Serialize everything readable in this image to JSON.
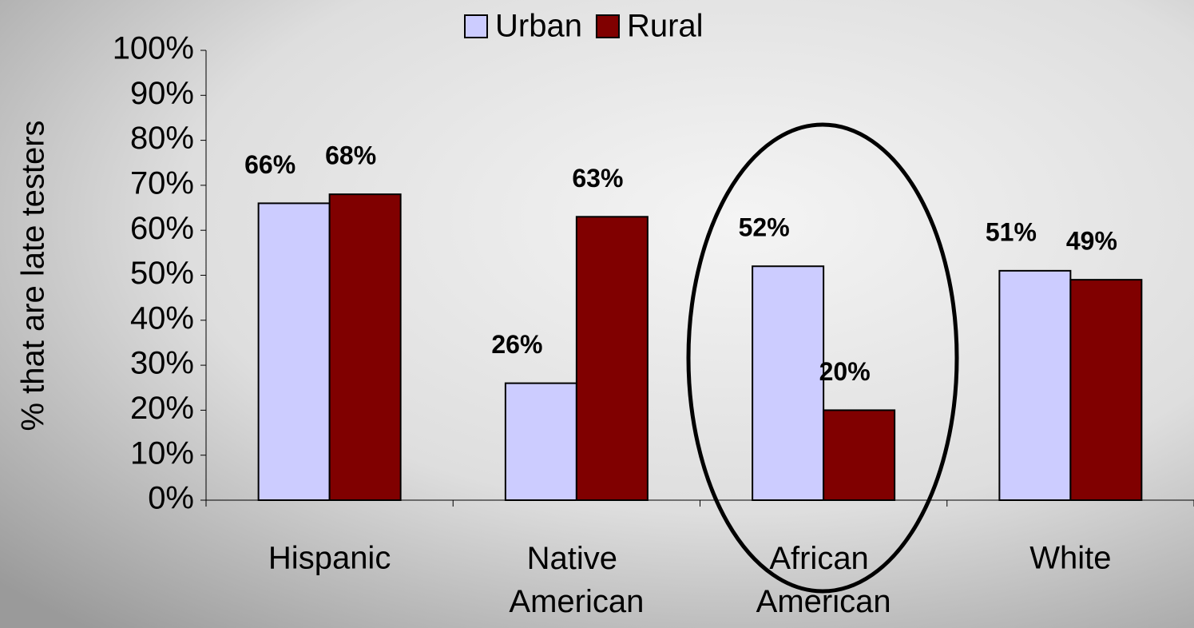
{
  "chart_data": {
    "type": "bar",
    "categories": [
      "Hispanic",
      "Native American",
      "African American",
      "White"
    ],
    "series": [
      {
        "name": "Urban",
        "color": "#ccccff",
        "values": [
          66,
          26,
          52,
          51
        ],
        "value_labels": [
          "66%",
          "26%",
          "52%",
          "51%"
        ]
      },
      {
        "name": "Rural",
        "color": "#800000",
        "values": [
          68,
          63,
          20,
          49
        ],
        "value_labels": [
          "68%",
          "63%",
          "20%",
          "49%"
        ]
      }
    ],
    "y_label": "% that are late testers",
    "ylim": [
      0,
      100
    ],
    "yticks": [
      {
        "value": 0,
        "label": "0%"
      },
      {
        "value": 10,
        "label": "10%"
      },
      {
        "value": 20,
        "label": "20%"
      },
      {
        "value": 30,
        "label": "30%"
      },
      {
        "value": 40,
        "label": "40%"
      },
      {
        "value": 50,
        "label": "50%"
      },
      {
        "value": 60,
        "label": "60%"
      },
      {
        "value": 70,
        "label": "70%"
      },
      {
        "value": 80,
        "label": "80%"
      },
      {
        "value": 90,
        "label": "90%"
      },
      {
        "value": 100,
        "label": "100%"
      }
    ],
    "legend": "top"
  }
}
